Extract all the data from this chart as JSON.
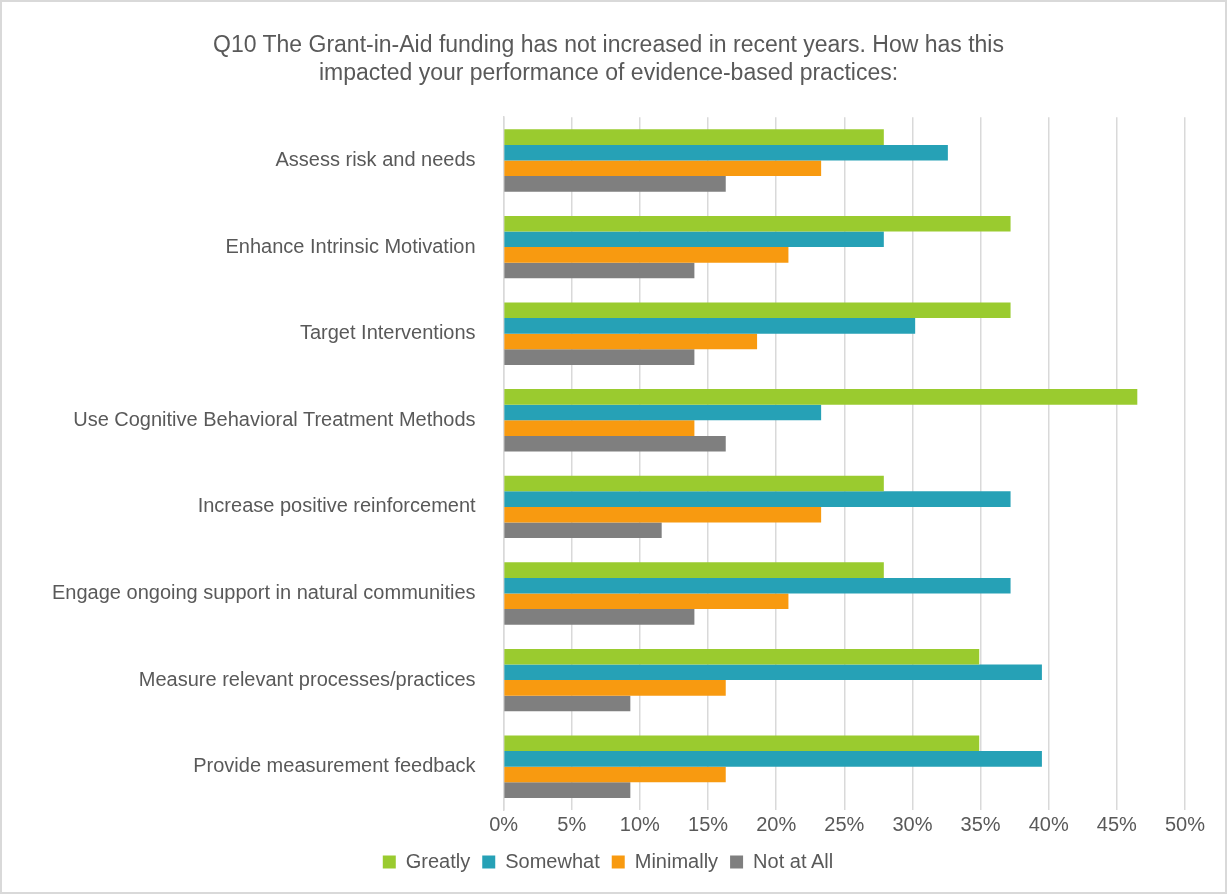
{
  "chart_data": {
    "type": "bar",
    "orientation": "horizontal",
    "title": "Q10 The Grant-in-Aid funding has not increased in recent years. How has this impacted your performance of evidence-based practices:",
    "categories": [
      "Assess risk and needs",
      "Enhance Intrinsic Motivation",
      "Target Interventions",
      "Use Cognitive Behavioral Treatment Methods",
      "Increase positive reinforcement",
      "Engage ongoing support in natural communities",
      "Measure relevant processes/practices",
      "Provide measurement feedback"
    ],
    "series": [
      {
        "name": "Greatly",
        "color": "#9acb2f",
        "values": [
          27.9,
          37.2,
          37.2,
          46.5,
          27.9,
          27.9,
          34.9,
          34.9
        ]
      },
      {
        "name": "Somewhat",
        "color": "#26a1b6",
        "values": [
          32.6,
          27.9,
          30.2,
          23.3,
          37.2,
          37.2,
          39.5,
          39.5
        ]
      },
      {
        "name": "Minimally",
        "color": "#f89a10",
        "values": [
          23.3,
          20.9,
          18.6,
          14.0,
          23.3,
          20.9,
          16.3,
          16.3
        ]
      },
      {
        "name": "Not at All",
        "color": "#7f7f7f",
        "values": [
          16.3,
          14.0,
          14.0,
          16.3,
          11.6,
          14.0,
          9.3,
          9.3
        ]
      }
    ],
    "xlim": [
      0,
      50
    ],
    "xticks": [
      {
        "value": 0,
        "label": "0%"
      },
      {
        "value": 5,
        "label": "5%"
      },
      {
        "value": 10,
        "label": "10%"
      },
      {
        "value": 15,
        "label": "15%"
      },
      {
        "value": 20,
        "label": "20%"
      },
      {
        "value": 25,
        "label": "25%"
      },
      {
        "value": 30,
        "label": "30%"
      },
      {
        "value": 35,
        "label": "35%"
      },
      {
        "value": 40,
        "label": "40%"
      },
      {
        "value": 45,
        "label": "45%"
      },
      {
        "value": 50,
        "label": "50%"
      }
    ],
    "grid": "x",
    "legend": "bottom"
  }
}
